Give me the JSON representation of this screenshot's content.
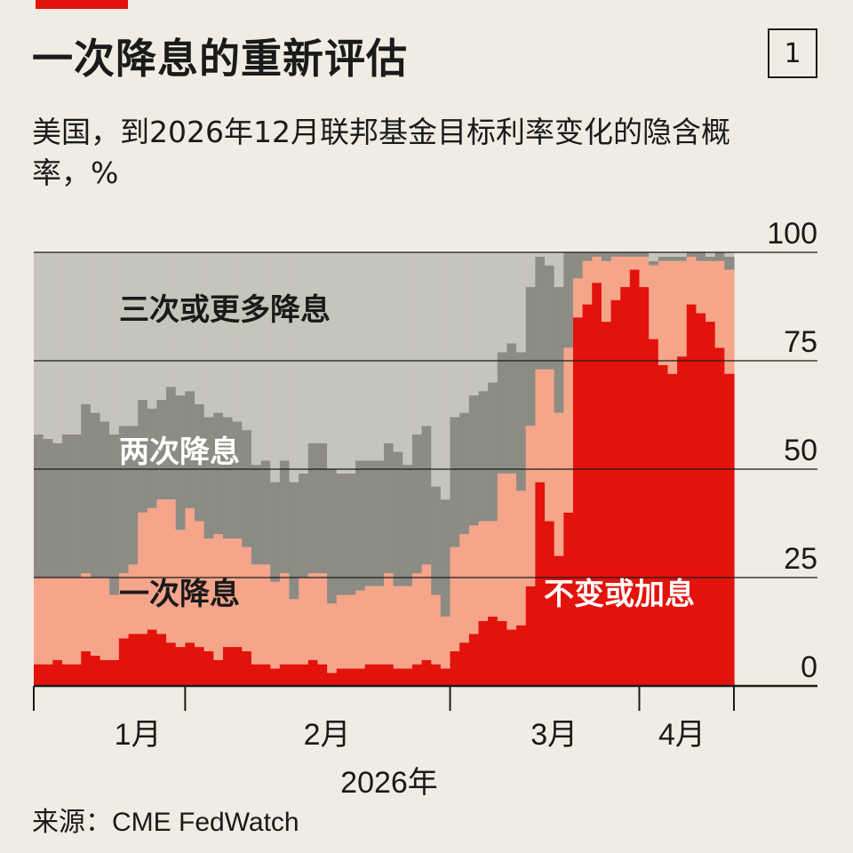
{
  "header": {
    "title": "一次降息的重新评估",
    "chart_number": "1",
    "subtitle": "美国，到2026年12月联邦基金目标利率变化的隐含概率，%"
  },
  "source": "来源：CME FedWatch",
  "colors": {
    "background": "#efece4",
    "brand": "#e3120b",
    "no_change_or_hike": "#e3120b",
    "one_cut": "#f4a58a",
    "two_cuts": "#8c8b84",
    "three_or_more": "#c6c5bc"
  },
  "chart_data": {
    "type": "area",
    "stacked": true,
    "title": "一次降息的重新评估",
    "subtitle": "美国，到2026年12月联邦基金目标利率变化的隐含概率，%",
    "xlabel": "2026年",
    "x_ticks": [
      "1月",
      "2月",
      "3月",
      "4月"
    ],
    "x_year_label": "2026年",
    "y_ticks": [
      "0",
      "25",
      "50",
      "75",
      "100"
    ],
    "ylim": [
      0,
      100
    ],
    "y_axis_side": "right",
    "grid": true,
    "series": [
      {
        "name": "不变或加息",
        "values": [
          5,
          5,
          6,
          5,
          5,
          8,
          7,
          6,
          6,
          11,
          12,
          12,
          13,
          12,
          10,
          9,
          10,
          9,
          8,
          6,
          9,
          9,
          8,
          5,
          5,
          4,
          5,
          5,
          5,
          6,
          5,
          3,
          4,
          4,
          4,
          5,
          5,
          5,
          4,
          4,
          5,
          6,
          5,
          4,
          8,
          10,
          12,
          15,
          16,
          15,
          13,
          14,
          23,
          47,
          38,
          30,
          40,
          85,
          88,
          93,
          84,
          89,
          92,
          96,
          92,
          80,
          74,
          72,
          76,
          88,
          86,
          84,
          78,
          72
        ]
      },
      {
        "name": "一次降息",
        "values": [
          20,
          20,
          19,
          20,
          20,
          18,
          18,
          19,
          15,
          15,
          16,
          28,
          28,
          31,
          33,
          27,
          31,
          29,
          26,
          29,
          25,
          25,
          24,
          23,
          23,
          20,
          21,
          15,
          20,
          20,
          21,
          16,
          17,
          17,
          18,
          18,
          18,
          21,
          19,
          19,
          21,
          22,
          16,
          12,
          24,
          25,
          25,
          23,
          22,
          34,
          36,
          31,
          37,
          26,
          35,
          33,
          38,
          9,
          10,
          6,
          14,
          10,
          7,
          3,
          7,
          17,
          24,
          26,
          22,
          11,
          12,
          14,
          20,
          24
        ]
      },
      {
        "name": "两次降息",
        "values": [
          33,
          32,
          31,
          33,
          33,
          39,
          38,
          36,
          37,
          34,
          32,
          26,
          23,
          23,
          26,
          31,
          27,
          27,
          28,
          28,
          28,
          27,
          27,
          23,
          24,
          23,
          26,
          27,
          24,
          30,
          30,
          31,
          28,
          28,
          30,
          29,
          29,
          30,
          31,
          28,
          32,
          32,
          25,
          27,
          30,
          28,
          30,
          30,
          32,
          28,
          30,
          32,
          32,
          26,
          24,
          29,
          22,
          6,
          2,
          1,
          2,
          1,
          1,
          1,
          1,
          1,
          1,
          1,
          1,
          1,
          2,
          1,
          2,
          3
        ]
      },
      {
        "name": "三次或更多降息",
        "values": [
          42,
          43,
          44,
          42,
          42,
          35,
          37,
          39,
          42,
          40,
          40,
          34,
          36,
          34,
          31,
          33,
          32,
          35,
          38,
          37,
          38,
          39,
          41,
          49,
          48,
          53,
          48,
          53,
          51,
          44,
          44,
          50,
          51,
          51,
          48,
          48,
          48,
          44,
          46,
          49,
          42,
          40,
          54,
          57,
          38,
          37,
          33,
          32,
          30,
          23,
          21,
          23,
          8,
          1,
          3,
          8,
          0,
          0,
          0,
          0,
          0,
          0,
          0,
          0,
          0,
          2,
          1,
          1,
          1,
          0,
          0,
          1,
          0,
          1
        ]
      }
    ]
  },
  "series_labels": {
    "three_or_more": "三次或更多降息",
    "two_cuts": "两次降息",
    "one_cut": "一次降息",
    "no_change_or_hike": "不变或加息"
  }
}
